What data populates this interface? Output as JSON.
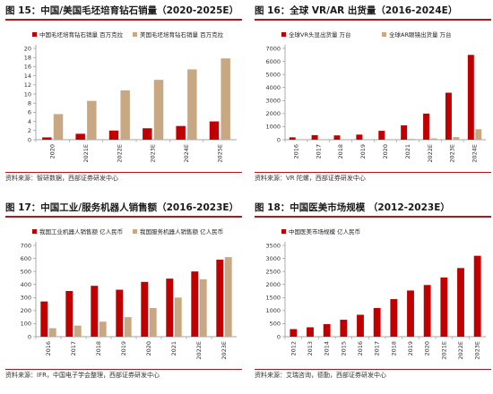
{
  "colors": {
    "red": "#c00000",
    "tan": "#c8a882",
    "title_rule": "#b2161d"
  },
  "panels": [
    {
      "title": "图 15：中国/美国毛坯培育钻石销量（2020-2025E）",
      "source": "资料来源：智研数据，西部证券研发中心",
      "chart_data": {
        "type": "bar",
        "categories": [
          "2020",
          "2021E",
          "2022E",
          "2023E",
          "2024E",
          "2025E"
        ],
        "series": [
          {
            "name": "中国毛坯培育钻石销量  百万克拉",
            "color": "#c00000",
            "values": [
              0.5,
              1.3,
              2.0,
              2.5,
              3.0,
              4.0
            ]
          },
          {
            "name": "美国毛坯培育钻石销量  百万克拉",
            "color": "#c8a882",
            "values": [
              5.6,
              8.5,
              10.8,
              13.1,
              15.4,
              17.8
            ]
          }
        ],
        "ylim": [
          0,
          20
        ],
        "yticks": [
          0,
          2,
          4,
          6,
          8,
          10,
          12,
          14,
          16,
          18,
          20
        ],
        "grid": false,
        "legend": "top"
      }
    },
    {
      "title": "图 16：全球 VR/AR 出货量（2016-2024E）",
      "source": "资料来源：VR 陀螺，西部证券研发中心",
      "chart_data": {
        "type": "bar",
        "categories": [
          "2016",
          "2017",
          "2018",
          "2019",
          "2020",
          "2021",
          "2022E",
          "2023E",
          "2024E"
        ],
        "series": [
          {
            "name": "全球VR头显出货量  万台",
            "color": "#c00000",
            "values": [
              180,
              350,
              330,
              390,
              680,
              1100,
              2000,
              3600,
              6500
            ]
          },
          {
            "name": "全球AR眼镜出货量  万台",
            "color": "#c8a882",
            "values": [
              10,
              20,
              25,
              30,
              40,
              60,
              100,
              200,
              800
            ]
          }
        ],
        "ylim": [
          0,
          7000
        ],
        "yticks": [
          0,
          1000,
          2000,
          3000,
          4000,
          5000,
          6000,
          7000
        ],
        "grid": false,
        "legend": "top"
      }
    },
    {
      "title": "图 17：中国工业/服务机器人销售额（2016-2023E）",
      "source": "资料来源：IFR，中国电子学会整理，西部证券研发中心",
      "chart_data": {
        "type": "bar",
        "categories": [
          "2016",
          "2017",
          "2018",
          "2019",
          "2020",
          "2021",
          "2022E",
          "2023E"
        ],
        "series": [
          {
            "name": "我国工业机器人销售额  亿人民币",
            "color": "#c00000",
            "values": [
              270,
              350,
              390,
              360,
              420,
              445,
              500,
              590
            ]
          },
          {
            "name": "我国服务机器人销售额  亿人民币",
            "color": "#c8a882",
            "values": [
              65,
              85,
              115,
              150,
              220,
              300,
              440,
              610
            ]
          }
        ],
        "ylim": [
          0,
          700
        ],
        "yticks": [
          0,
          100,
          200,
          300,
          400,
          500,
          600,
          700
        ],
        "grid": false,
        "legend": "top"
      }
    },
    {
      "title": "图 18：中国医美市场规模  （2012-2023E）",
      "source": "资料来源：艾瑞咨询，德勤，西部证券研发中心",
      "chart_data": {
        "type": "bar",
        "categories": [
          "2012",
          "2013",
          "2014",
          "2015",
          "2016",
          "2017",
          "2018",
          "2019",
          "2020",
          "2021E",
          "2022E",
          "2023E"
        ],
        "series": [
          {
            "name": "中国医美市场规模  亿人民币",
            "color": "#c00000",
            "values": [
              290,
              360,
              480,
              650,
              840,
              1100,
              1440,
              1770,
              1980,
              2270,
              2630,
              3100
            ]
          }
        ],
        "ylim": [
          0,
          3500
        ],
        "yticks": [
          0,
          500,
          1000,
          1500,
          2000,
          2500,
          3000,
          3500
        ],
        "grid": false,
        "legend": "top"
      }
    }
  ]
}
